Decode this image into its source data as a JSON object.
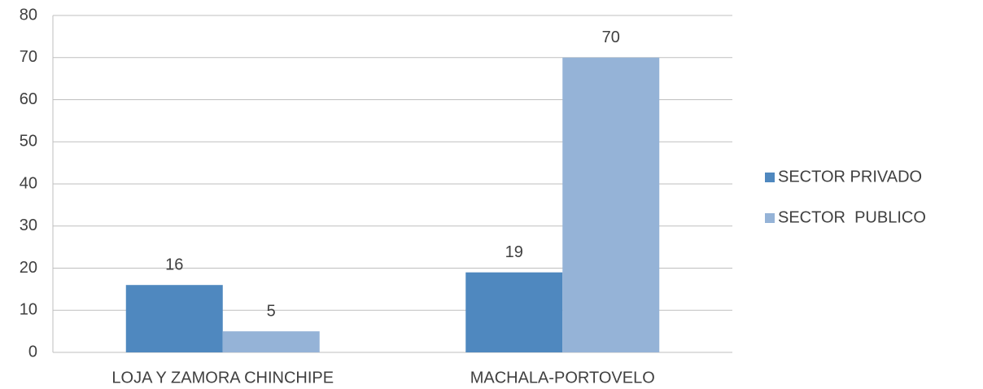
{
  "chart_data": {
    "type": "bar",
    "categories": [
      "LOJA Y ZAMORA CHINCHIPE",
      "MACHALA-PORTOVELO"
    ],
    "series": [
      {
        "name": "SECTOR PRIVADO",
        "color": "#4f88bf",
        "values": [
          16,
          19
        ]
      },
      {
        "name": "SECTOR  PUBLICO",
        "color": "#95b3d7",
        "values": [
          5,
          70
        ]
      }
    ],
    "ylim": [
      0,
      80
    ],
    "yticks": [
      0,
      10,
      20,
      30,
      40,
      50,
      60,
      70,
      80
    ],
    "grid": true,
    "legend": "right"
  }
}
